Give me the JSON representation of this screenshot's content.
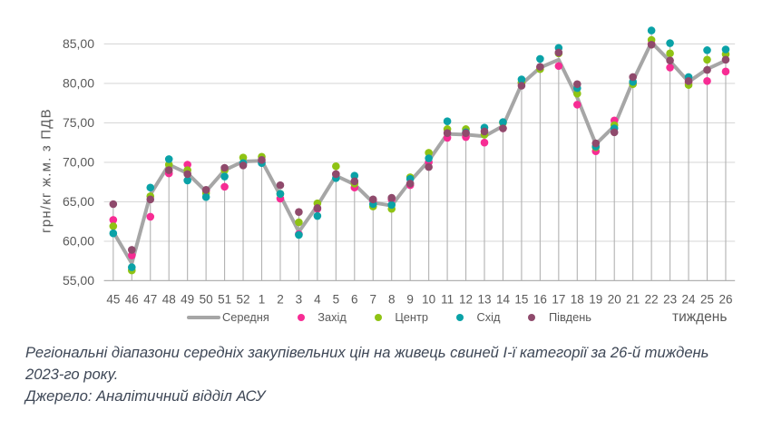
{
  "chart_data": {
    "type": "line",
    "title": "",
    "ylabel": "грн/кг ж.м. з ПДВ",
    "xlabel": "тиждень",
    "ylim": [
      55,
      85
    ],
    "ytick_labels": [
      "55,00",
      "60,00",
      "65,00",
      "70,00",
      "75,00",
      "80,00",
      "85,00"
    ],
    "grid": true,
    "drop_lines": true,
    "legend_position": "bottom",
    "categories": [
      "45",
      "46",
      "47",
      "48",
      "49",
      "50",
      "51",
      "52",
      "1",
      "2",
      "3",
      "4",
      "5",
      "6",
      "7",
      "8",
      "9",
      "10",
      "11",
      "12",
      "13",
      "14",
      "15",
      "16",
      "17",
      "18",
      "19",
      "20",
      "21",
      "22",
      "23",
      "24",
      "25",
      "26"
    ],
    "series": [
      {
        "name": "Середня",
        "style": "line",
        "color": "#A6A6A6",
        "values": [
          61.2,
          57.2,
          65.9,
          69.7,
          68.6,
          66.3,
          69.0,
          70.1,
          70.2,
          65.8,
          61.2,
          64.5,
          68.3,
          67.2,
          64.9,
          64.5,
          67.6,
          70.2,
          73.6,
          73.5,
          73.3,
          74.6,
          79.9,
          82.0,
          83.0,
          78.2,
          72.3,
          74.6,
          80.3,
          85.2,
          82.8,
          80.2,
          81.8,
          82.9
        ]
      },
      {
        "name": "Захід",
        "style": "scatter",
        "color": "#F72C94",
        "values": [
          62.7,
          58.2,
          63.1,
          68.6,
          69.7,
          66.4,
          66.9,
          69.8,
          70.0,
          65.4,
          60.9,
          64.1,
          68.5,
          66.8,
          65.1,
          65.3,
          67.1,
          70.0,
          73.1,
          73.2,
          72.5,
          74.3,
          80.0,
          82.0,
          82.2,
          77.3,
          71.4,
          75.3,
          80.0,
          85.0,
          82.0,
          80.1,
          80.3,
          81.5
        ]
      },
      {
        "name": "Центр",
        "style": "scatter",
        "color": "#8FC314",
        "values": [
          61.9,
          56.3,
          65.7,
          69.7,
          69.0,
          66.1,
          69.0,
          70.6,
          70.7,
          66.0,
          62.4,
          64.8,
          69.5,
          67.3,
          64.4,
          64.1,
          68.1,
          71.2,
          74.2,
          74.2,
          73.5,
          75.0,
          80.1,
          81.8,
          83.8,
          78.7,
          71.9,
          74.7,
          79.9,
          85.5,
          83.8,
          79.8,
          83.0,
          83.7
        ]
      },
      {
        "name": "Схід",
        "style": "scatter",
        "color": "#0AA2A7",
        "values": [
          61.0,
          56.7,
          66.8,
          70.4,
          67.7,
          65.6,
          68.2,
          69.9,
          69.9,
          66.0,
          60.8,
          63.2,
          68.0,
          68.3,
          64.7,
          64.6,
          67.9,
          70.5,
          75.2,
          73.8,
          74.4,
          75.1,
          80.5,
          83.1,
          84.5,
          79.4,
          72.0,
          74.3,
          80.2,
          86.7,
          85.1,
          80.8,
          84.2,
          84.3
        ]
      },
      {
        "name": "Південь",
        "style": "scatter",
        "color": "#8F4A6C",
        "values": [
          64.7,
          58.9,
          65.3,
          69.0,
          68.5,
          66.5,
          69.3,
          69.6,
          70.3,
          67.1,
          63.7,
          64.2,
          68.5,
          67.6,
          65.3,
          65.5,
          67.3,
          69.4,
          73.7,
          73.7,
          73.9,
          74.3,
          79.7,
          82.1,
          83.9,
          79.9,
          72.4,
          73.8,
          80.8,
          84.9,
          82.9,
          80.3,
          81.7,
          83.0
        ]
      }
    ],
    "colors": {
      "gridline": "#D9D9D9",
      "drop_line": "#B2B2B2",
      "axis_line": "#B2B2B2",
      "tick_text": "#595959"
    }
  },
  "captions": {
    "line1": "Регіональні діапазони середніх закупівельних цін на живець свиней І-ї категорії за 26-й тиждень",
    "line2": "2023-го року.",
    "source": "Джерело: Аналітичний відділ АСУ"
  }
}
